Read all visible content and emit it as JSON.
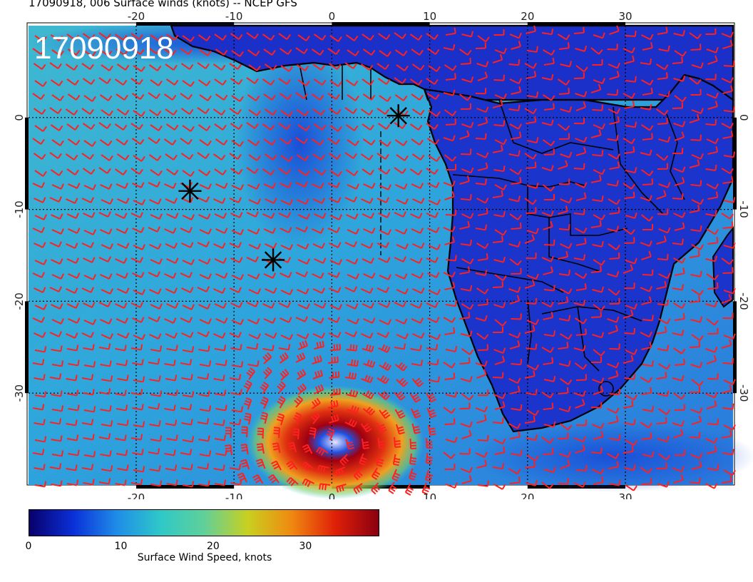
{
  "title": "17090918, 006 Surface winds (knots) -- NCEP GFS",
  "stamp": "17090918",
  "lon_ticks": [
    "-20",
    "-10",
    "0",
    "10",
    "20",
    "30"
  ],
  "lat_ticks": [
    "0",
    "-10",
    "-20",
    "-30"
  ],
  "extent": {
    "lon": [
      -31,
      41
    ],
    "lat": [
      -40,
      10
    ]
  },
  "markers": [
    {
      "name": "asterisk-marker-1",
      "lon": 6.8,
      "lat": 0.2
    },
    {
      "name": "asterisk-marker-2",
      "lon": -14.5,
      "lat": -8.0
    },
    {
      "name": "asterisk-marker-3",
      "lon": -6.0,
      "lat": -15.5
    }
  ],
  "colorbar": {
    "title": "Surface Wind Speed, knots",
    "range": [
      0,
      38
    ],
    "labels": [
      "0",
      "10",
      "20",
      "30"
    ],
    "colors": [
      "#08006a",
      "#0a2fd8",
      "#1f8ce8",
      "#2ec8c8",
      "#60d09a",
      "#c8d020",
      "#f08a10",
      "#e02008",
      "#8a0010"
    ]
  },
  "colors": {
    "ocean": "#2fa8d8",
    "land": "#1a2fd0",
    "barbs": "#ff2020",
    "coast": "#000000"
  }
}
